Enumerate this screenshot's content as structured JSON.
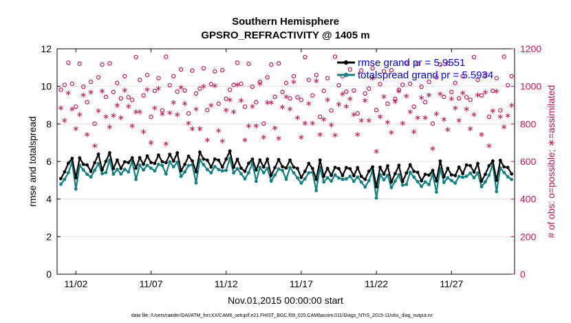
{
  "chart_data": {
    "type": "line",
    "title": "Southern Hemisphere",
    "subtitle": "GPSRO_REFRACTIVITY @ 1405 m",
    "xlabel": "Nov.01,2015 00:00:00 start",
    "ylabel": "rmse and totalspread",
    "ylabel_right": "# of obs: o=possible; ∗=assimilated",
    "footer": "data file: /Users/raeder/DAI/ATM_forcXX/CAM6_setup/f.e21.FHIST_BGC.f09_025.CAM6assim.011/Diags_NTrS_2015-11/obs_diag_output.nc",
    "ylim": [
      0,
      12
    ],
    "ylim_right": [
      0,
      1200
    ],
    "xlim": [
      0.75,
      31.2
    ],
    "x_ticks": [
      2,
      7,
      12,
      17,
      22,
      27
    ],
    "x_tick_labels": [
      "11/02",
      "11/07",
      "11/12",
      "11/17",
      "11/22",
      "11/27"
    ],
    "y_ticks": [
      0,
      2,
      4,
      6,
      8,
      10,
      12
    ],
    "y_ticks_right": [
      0,
      200,
      400,
      600,
      800,
      1000,
      1200
    ],
    "legend": [
      "rmse grand pr = 5.9551",
      "totalspread grand pr = 5.5934"
    ],
    "grid": true,
    "colors": {
      "rmse": "#000000",
      "spread": "#108080",
      "obs": "#cc1155",
      "legend_text": "#0000ee",
      "grid": "#e0e0e0"
    },
    "rmse_pattern": [
      5.3,
      5.5,
      5.8,
      5.9,
      5.2,
      6.1,
      5.6,
      5.9,
      5.4,
      5.7,
      6.0,
      5.5,
      5.8,
      6.1,
      5.6,
      5.9
    ],
    "spread_offset": [
      0.3,
      0.4,
      0.5,
      0.2,
      0.6,
      0.4,
      0.3,
      0.5
    ],
    "possible_pattern": [
      1030,
      960,
      1090,
      990,
      880,
      1120,
      1010,
      940,
      1060,
      850,
      1000,
      1080,
      920,
      1110,
      970
    ],
    "assimilated_pattern": [
      930,
      850,
      980,
      880,
      760,
      820,
      910,
      790,
      1000,
      700,
      870,
      960,
      810,
      740,
      890
    ]
  }
}
